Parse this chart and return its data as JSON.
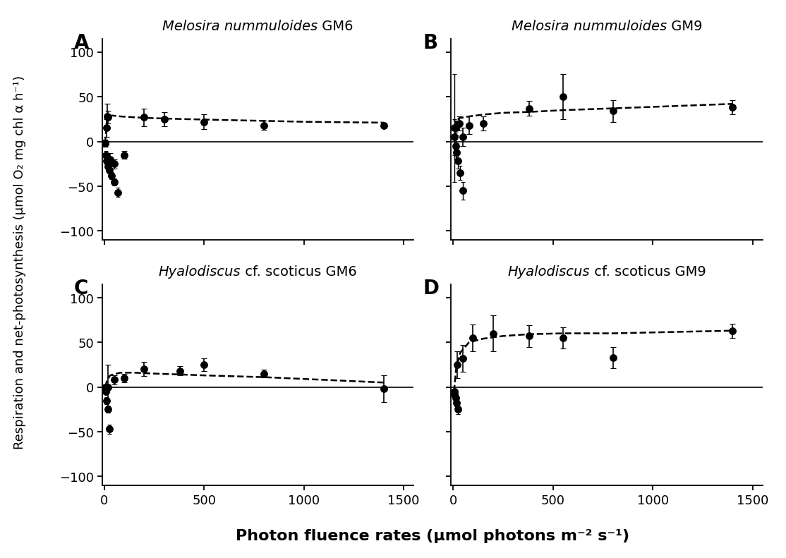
{
  "panels": [
    {
      "label": "A",
      "title_italic": "Melosira nummuloides",
      "title_normal": " GM6",
      "x": [
        5,
        10,
        15,
        20,
        30,
        50,
        100,
        200,
        300,
        500,
        800,
        1400
      ],
      "y": [
        -2,
        15,
        28,
        27,
        -20,
        -25,
        -15,
        27,
        25,
        22,
        18,
        18
      ],
      "yerr": [
        4,
        10,
        14,
        7,
        7,
        5,
        4,
        10,
        8,
        8,
        5,
        3
      ],
      "low_x": [
        5,
        8,
        12,
        18,
        25,
        35,
        50,
        70
      ],
      "low_y": [
        -2,
        -15,
        -22,
        -28,
        -32,
        -38,
        -45,
        -57
      ],
      "low_yerr": [
        3,
        4,
        4,
        4,
        4,
        4,
        4,
        5
      ],
      "curve_x": [
        5,
        10,
        20,
        40,
        80,
        150,
        250,
        400,
        600,
        1000,
        1400
      ],
      "curve_y": [
        -2,
        15,
        27,
        29,
        28,
        27,
        26,
        25,
        24,
        22,
        21
      ]
    },
    {
      "label": "B",
      "title_italic": "Melosira nummuloides",
      "title_normal": " GM9",
      "x": [
        15,
        30,
        50,
        80,
        150,
        380,
        550,
        800,
        1400
      ],
      "y": [
        15,
        20,
        5,
        18,
        20,
        37,
        50,
        34,
        38
      ],
      "yerr": [
        8,
        8,
        10,
        10,
        8,
        8,
        25,
        12,
        8
      ],
      "low_x": [
        5,
        8,
        12,
        18,
        25,
        35,
        50
      ],
      "low_y": [
        15,
        5,
        -5,
        -12,
        -22,
        -35,
        -55
      ],
      "low_yerr": [
        60,
        20,
        15,
        10,
        8,
        8,
        10
      ],
      "curve_x": [
        5,
        15,
        30,
        80,
        150,
        250,
        380,
        550,
        800,
        1400
      ],
      "curve_y": [
        15,
        22,
        26,
        28,
        30,
        32,
        33,
        35,
        37,
        42
      ]
    },
    {
      "label": "C",
      "title_italic": "Hyalodiscus",
      "title_normal": " cf. scoticus GM6",
      "x": [
        20,
        50,
        100,
        200,
        380,
        500,
        800,
        1400
      ],
      "y": [
        0,
        8,
        10,
        20,
        18,
        25,
        15,
        -2
      ],
      "yerr": [
        25,
        5,
        5,
        8,
        5,
        7,
        4,
        15
      ],
      "low_x": [
        5,
        8,
        12,
        18,
        25
      ],
      "low_y": [
        0,
        -5,
        -15,
        -25,
        -47
      ],
      "low_yerr": [
        3,
        3,
        4,
        4,
        5
      ],
      "curve_x": [
        5,
        15,
        30,
        80,
        150,
        250,
        380,
        500,
        800,
        1400
      ],
      "curve_y": [
        0,
        8,
        13,
        16,
        16,
        15,
        14,
        13,
        11,
        5
      ]
    },
    {
      "label": "D",
      "title_italic": "Hyalodiscus",
      "title_normal": " cf. scoticus GM9",
      "x": [
        20,
        50,
        100,
        200,
        380,
        550,
        800,
        1400
      ],
      "y": [
        25,
        32,
        55,
        60,
        57,
        55,
        33,
        63
      ],
      "yerr": [
        15,
        15,
        15,
        20,
        12,
        12,
        12,
        8
      ],
      "low_x": [
        5,
        8,
        12,
        18,
        25
      ],
      "low_y": [
        -5,
        -8,
        -12,
        -18,
        -25
      ],
      "low_yerr": [
        3,
        3,
        4,
        4,
        5
      ],
      "curve_x": [
        5,
        15,
        35,
        80,
        150,
        250,
        380,
        550,
        800,
        1400
      ],
      "curve_y": [
        -5,
        20,
        38,
        50,
        54,
        57,
        59,
        60,
        60,
        63
      ]
    }
  ],
  "xlabel": "Photon fluence rates (μmol photons m⁻² s⁻¹)",
  "ylabel": "Respiration and net-photosynthesis (μmol O₂ mg chl α h⁻¹)",
  "xlim": [
    -10,
    1550
  ],
  "ylim": [
    -110,
    115
  ],
  "yticks": [
    -100,
    -50,
    0,
    50,
    100
  ],
  "xticks": [
    0,
    500,
    1000,
    1500
  ],
  "bg_color": "#ffffff",
  "marker_size": 7,
  "linewidth": 1.8,
  "title_fontsize": 14,
  "tick_fontsize": 13,
  "panel_label_fontsize": 20,
  "xlabel_fontsize": 16,
  "ylabel_fontsize": 13
}
